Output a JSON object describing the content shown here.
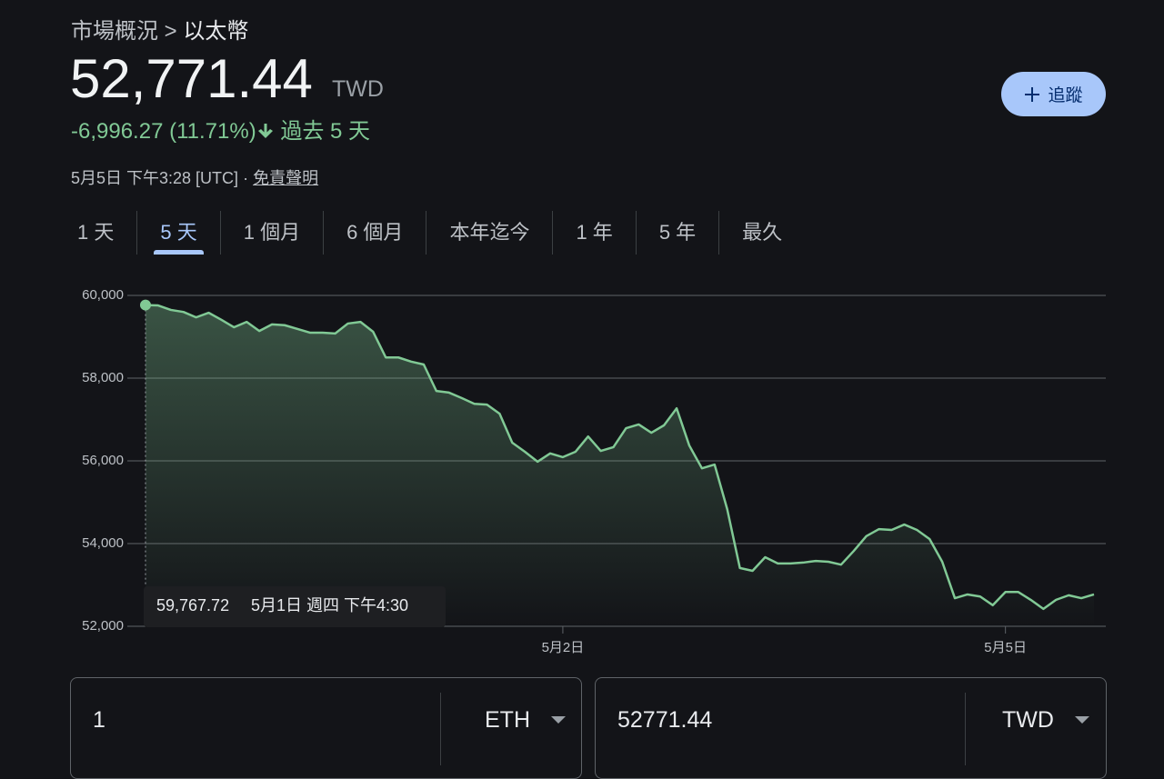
{
  "breadcrumb": {
    "parent": "市場概況",
    "separator": ">",
    "current": "以太幣"
  },
  "price": {
    "value": "52,771.44",
    "currency": "TWD"
  },
  "change": {
    "text": "-6,996.27 (11.71%)",
    "period": "過去 5 天"
  },
  "timestamp": {
    "text": "5月5日 下午3:28 [UTC]",
    "separator": "·",
    "disclaimer": "免責聲明"
  },
  "follow_button": "追蹤",
  "tabs": {
    "items": [
      "1 天",
      "5 天",
      "1 個月",
      "6 個月",
      "本年迄今",
      "1 年",
      "5 年",
      "最久"
    ],
    "selected": 1
  },
  "chart_data": {
    "type": "line",
    "categories": [
      null,
      null,
      null,
      null,
      null,
      null,
      null,
      null,
      null,
      null,
      null,
      null,
      null,
      null,
      null,
      null,
      null,
      null,
      null,
      null,
      null,
      null,
      null,
      null,
      null,
      null,
      null,
      null,
      null,
      null,
      null,
      null,
      null,
      "5月2日",
      null,
      null,
      null,
      null,
      null,
      null,
      null,
      null,
      null,
      null,
      null,
      null,
      null,
      null,
      null,
      null,
      null,
      null,
      null,
      null,
      null,
      null,
      null,
      null,
      null,
      null,
      null,
      null,
      null,
      null,
      null,
      null,
      null,
      null,
      "5月5日",
      null,
      null,
      null,
      null,
      null,
      null,
      null
    ],
    "series": [
      {
        "name": "以太幣",
        "color": "#81c995",
        "values": [
          59767.72,
          59758,
          59650,
          59600,
          59470,
          59580,
          59410,
          59230,
          59360,
          59140,
          59300,
          59280,
          59190,
          59100,
          59100,
          59080,
          59320,
          59360,
          59120,
          58500,
          58500,
          58400,
          58330,
          57690,
          57650,
          57520,
          57380,
          57360,
          57140,
          56440,
          56220,
          55980,
          56180,
          56090,
          56220,
          56590,
          56240,
          56330,
          56790,
          56880,
          56680,
          56860,
          57270,
          56370,
          55820,
          55910,
          54830,
          53410,
          53340,
          53670,
          53520,
          53520,
          53540,
          53580,
          53560,
          53490,
          53820,
          54180,
          54350,
          54330,
          54460,
          54330,
          54110,
          53560,
          52680,
          52770,
          52720,
          52510,
          52830,
          52830,
          52640,
          52420,
          52640,
          52750,
          52680,
          52771.44
        ]
      }
    ],
    "ylim": [
      52000,
      60000
    ],
    "yticks": [
      {
        "value": 52000,
        "label": "52,000"
      },
      {
        "value": 54000,
        "label": "54,000"
      },
      {
        "value": 56000,
        "label": "56,000"
      },
      {
        "value": 58000,
        "label": "58,000"
      },
      {
        "value": 60000,
        "label": "60,000"
      }
    ],
    "grid": true,
    "tooltip": {
      "label": "59,767.72",
      "time": "5月1日 週四 下午4:30"
    }
  },
  "converter": {
    "from_amount": "1",
    "from_currency": "ETH",
    "to_amount": "52771.44",
    "to_currency": "TWD"
  }
}
